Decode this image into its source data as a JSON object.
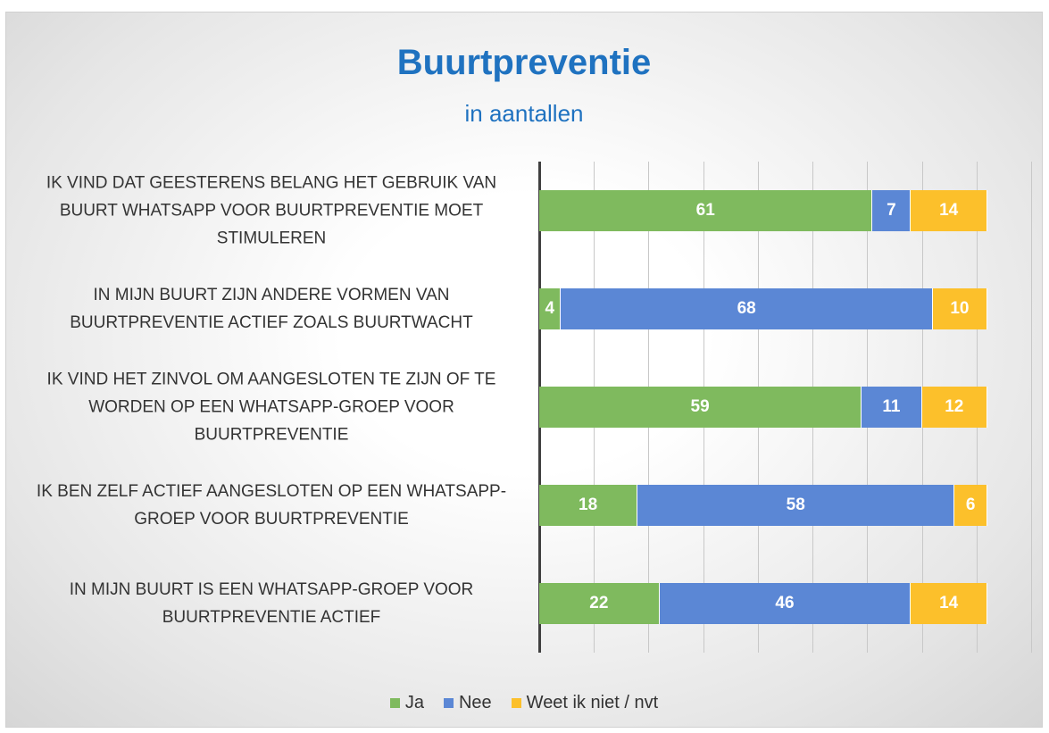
{
  "chart_data": {
    "type": "stacked_bar_horizontal",
    "title": "Buurtpreventie",
    "subtitle": "in aantallen",
    "categories": [
      "IK VIND DAT GEESTERENS BELANG HET GEBRUIK VAN BUURT WHATSAPP VOOR BUURTPREVENTIE MOET STIMULEREN",
      "IN MIJN BUURT ZIJN ANDERE VORMEN VAN BUURTPREVENTIE ACTIEF ZOALS BUURTWACHT",
      "IK VIND HET ZINVOL OM AANGESLOTEN TE ZIJN OF TE WORDEN OP EEN WHATSAPP-GROEP VOOR BUURTPREVENTIE",
      "IK BEN ZELF ACTIEF AANGESLOTEN OP EEN WHATSAPP-GROEP VOOR BUURTPREVENTIE",
      "IN MIJN BUURT IS EEN WHATSAPP-GROEP VOOR BUURTPREVENTIE ACTIEF"
    ],
    "series": [
      {
        "name": "Ja",
        "color": "#7fba5e",
        "values": [
          61,
          4,
          59,
          18,
          22
        ]
      },
      {
        "name": "Nee",
        "color": "#5b87d5",
        "values": [
          7,
          68,
          11,
          58,
          46
        ]
      },
      {
        "name": "Weet ik niet / nvt",
        "color": "#fcc02b",
        "values": [
          14,
          10,
          12,
          6,
          14
        ]
      }
    ],
    "xlim": [
      0,
      90
    ],
    "xticks": [
      0,
      10,
      20,
      30,
      40,
      50,
      60,
      70,
      80,
      90
    ],
    "grid": true,
    "legend": "bottom"
  }
}
